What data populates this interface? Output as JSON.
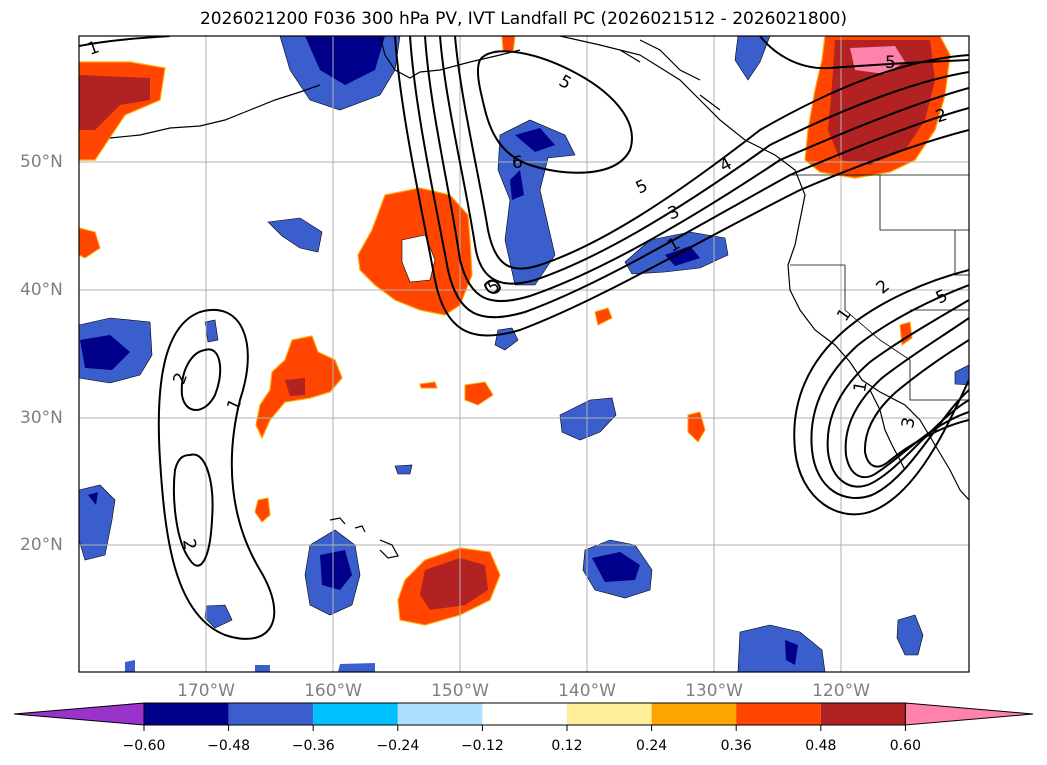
{
  "title": "2026021200 F036 300 hPa PV, IVT Landfall PC (2026021512 - 2026021800)",
  "lat_labels": [
    "50°N",
    "40°N",
    "30°N",
    "20°N"
  ],
  "lon_labels": [
    "170°W",
    "160°W",
    "150°W",
    "140°W",
    "130°W",
    "120°W"
  ],
  "colorbar": {
    "ticks": [
      "−0.60",
      "−0.48",
      "−0.36",
      "−0.24",
      "−0.12",
      "0.12",
      "0.24",
      "0.36",
      "0.48",
      "0.60"
    ],
    "colors": [
      "#9933cc",
      "#00008b",
      "#3a5fcd",
      "#00bfff",
      "#addfff",
      "#ffffff",
      "#ffee99",
      "#ffa500",
      "#ff4500",
      "#b22222",
      "#ff82ab"
    ]
  },
  "contour_labels": [
    "1",
    "5",
    "2",
    "6",
    "5",
    "4",
    "3",
    "1",
    "5",
    "2",
    "1",
    "2",
    "1",
    "2",
    "5",
    "1",
    "4",
    "3",
    "5"
  ]
}
